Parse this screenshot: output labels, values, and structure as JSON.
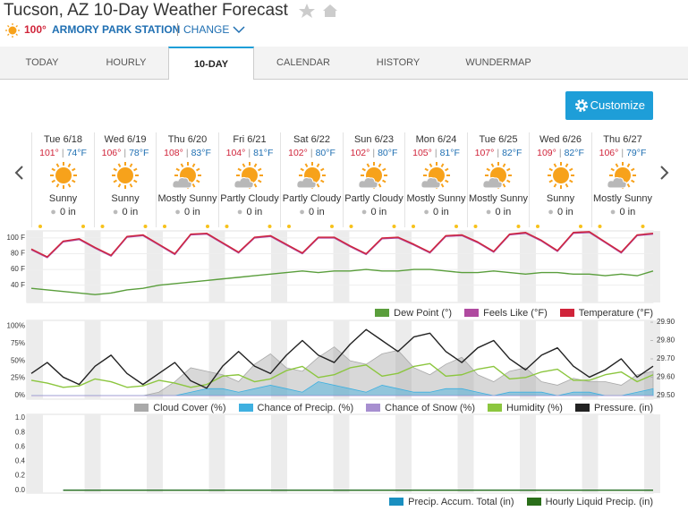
{
  "header": {
    "title": "Tucson, AZ 10-Day Weather Forecast",
    "current_temp": "100°",
    "station": "ARMORY PARK STATION",
    "change": "CHANGE"
  },
  "tabs": [
    "TODAY",
    "HOURLY",
    "10-DAY",
    "CALENDAR",
    "HISTORY",
    "WUNDERMAP"
  ],
  "active_tab": 2,
  "customize": "Customize",
  "days": [
    {
      "date": "Tue 6/18",
      "high": "101°",
      "low": "74°F",
      "condition": "Sunny",
      "precip": "0 in"
    },
    {
      "date": "Wed 6/19",
      "high": "106°",
      "low": "78°F",
      "condition": "Sunny",
      "precip": "0 in"
    },
    {
      "date": "Thu 6/20",
      "high": "108°",
      "low": "83°F",
      "condition": "Mostly Sunny",
      "precip": "0 in"
    },
    {
      "date": "Fri 6/21",
      "high": "104°",
      "low": "81°F",
      "condition": "Partly Cloudy",
      "precip": "0 in"
    },
    {
      "date": "Sat 6/22",
      "high": "102°",
      "low": "80°F",
      "condition": "Partly Cloudy",
      "precip": "0 in"
    },
    {
      "date": "Sun 6/23",
      "high": "102°",
      "low": "80°F",
      "condition": "Partly Cloudy",
      "precip": "0 in"
    },
    {
      "date": "Mon 6/24",
      "high": "105°",
      "low": "81°F",
      "condition": "Mostly Sunny",
      "precip": "0 in"
    },
    {
      "date": "Tue 6/25",
      "high": "107°",
      "low": "82°F",
      "condition": "Mostly Sunny",
      "precip": "0 in"
    },
    {
      "date": "Wed 6/26",
      "high": "109°",
      "low": "82°F",
      "condition": "Sunny",
      "precip": "0 in"
    },
    {
      "date": "Thu 6/27",
      "high": "106°",
      "low": "79°F",
      "condition": "Mostly Sunny",
      "precip": "0 in"
    }
  ],
  "charts": [
    {
      "type": "line",
      "ylim": [
        18,
        109
      ],
      "yticks": [
        {
          "value": 100,
          "label": "100 F"
        },
        {
          "value": 80,
          "label": "80 F"
        },
        {
          "value": 60,
          "label": "60 F"
        },
        {
          "value": 40,
          "label": "40 F"
        }
      ],
      "grid": true,
      "series": [
        {
          "name": "Dew Point (°)",
          "color": "#5a9e3c",
          "style": "line",
          "values": [
            36,
            34,
            32,
            30,
            28,
            30,
            34,
            36,
            40,
            42,
            44,
            46,
            48,
            50,
            52,
            54,
            56,
            58,
            56,
            58,
            58,
            60,
            58,
            58,
            60,
            60,
            58,
            56,
            56,
            58,
            56,
            54,
            56,
            56,
            54,
            54,
            52,
            54,
            52,
            58
          ]
        },
        {
          "name": "Feels Like (°F)",
          "color": "#b04aa0",
          "style": "line",
          "values": [
            85,
            75,
            95,
            98,
            87,
            77,
            101,
            103,
            91,
            79,
            104,
            105,
            93,
            81,
            100,
            102,
            91,
            80,
            100,
            100,
            89,
            79,
            99,
            100,
            91,
            81,
            102,
            103,
            94,
            82,
            104,
            106,
            96,
            83,
            106,
            107,
            94,
            81,
            103,
            105
          ]
        },
        {
          "name": "Temperature (°F)",
          "color": "#d0243a",
          "style": "line",
          "values": [
            86,
            76,
            96,
            99,
            88,
            78,
            102,
            104,
            92,
            80,
            105,
            106,
            94,
            82,
            101,
            103,
            92,
            81,
            101,
            101,
            90,
            80,
            100,
            101,
            92,
            82,
            103,
            104,
            95,
            83,
            105,
            107,
            97,
            84,
            107,
            108,
            95,
            82,
            104,
            106
          ]
        }
      ]
    },
    {
      "type": "line",
      "ylim": [
        -5,
        108
      ],
      "yticks": [
        {
          "value": 100,
          "label": "100%"
        },
        {
          "value": 75,
          "label": "75%"
        },
        {
          "value": 50,
          "label": "50%"
        },
        {
          "value": 25,
          "label": "25%"
        },
        {
          "value": 0,
          "label": "0%"
        }
      ],
      "y2lim": [
        29.48,
        29.91
      ],
      "y2ticks": [
        {
          "value": 29.9,
          "label": "29.90"
        },
        {
          "value": 29.8,
          "label": "29.80"
        },
        {
          "value": 29.7,
          "label": "29.70"
        },
        {
          "value": 29.6,
          "label": "29.60"
        },
        {
          "value": 29.5,
          "label": "29.50"
        }
      ],
      "series": [
        {
          "name": "Cloud Cover (%)",
          "color": "#a9a9a9",
          "style": "area",
          "values": [
            0,
            0,
            0,
            0,
            0,
            0,
            0,
            0,
            5,
            20,
            40,
            35,
            30,
            20,
            45,
            60,
            40,
            35,
            55,
            70,
            50,
            45,
            60,
            65,
            40,
            30,
            45,
            55,
            30,
            20,
            35,
            40,
            20,
            15,
            25,
            20,
            20,
            15,
            30,
            35
          ]
        },
        {
          "name": "Chance of Precip. (%)",
          "color": "#3fb0e0",
          "style": "area",
          "values": [
            0,
            0,
            0,
            0,
            0,
            0,
            0,
            0,
            0,
            0,
            5,
            10,
            10,
            5,
            10,
            15,
            10,
            5,
            20,
            15,
            10,
            5,
            15,
            10,
            5,
            5,
            10,
            10,
            5,
            0,
            5,
            5,
            5,
            0,
            5,
            5,
            0,
            0,
            5,
            10
          ]
        },
        {
          "name": "Chance of Snow (%)",
          "color": "#a78fd0",
          "style": "area",
          "values": [
            0,
            0,
            0,
            0,
            0,
            0,
            0,
            0,
            0,
            0,
            0,
            0,
            0,
            0,
            0,
            0,
            0,
            0,
            0,
            0,
            0,
            0,
            0,
            0,
            0,
            0,
            0,
            0,
            0,
            0,
            0,
            0,
            0,
            0,
            0,
            0,
            0,
            0,
            0,
            0
          ]
        },
        {
          "name": "Humidity (%)",
          "color": "#8cc63f",
          "style": "line",
          "values": [
            22,
            18,
            12,
            14,
            24,
            20,
            12,
            14,
            22,
            18,
            12,
            16,
            28,
            30,
            20,
            24,
            36,
            42,
            26,
            30,
            40,
            44,
            28,
            32,
            42,
            46,
            28,
            30,
            38,
            42,
            24,
            26,
            34,
            38,
            22,
            22,
            30,
            34,
            20,
            30
          ]
        },
        {
          "name": "Pressure. (in)",
          "color": "#222222",
          "style": "line",
          "axis": "y2",
          "values": [
            29.62,
            29.68,
            29.6,
            29.56,
            29.66,
            29.72,
            29.62,
            29.56,
            29.62,
            29.68,
            29.58,
            29.54,
            29.66,
            29.74,
            29.66,
            29.62,
            29.72,
            29.8,
            29.72,
            29.68,
            29.78,
            29.86,
            29.8,
            29.74,
            29.82,
            29.84,
            29.74,
            29.68,
            29.76,
            29.8,
            29.7,
            29.64,
            29.72,
            29.76,
            29.66,
            29.6,
            29.64,
            29.7,
            29.6,
            29.66
          ]
        }
      ]
    },
    {
      "type": "line",
      "ylim": [
        -0.04,
        1.05
      ],
      "yticks": [
        {
          "value": 1,
          "label": "1.0"
        },
        {
          "value": 0.8,
          "label": "0.8"
        },
        {
          "value": 0.6,
          "label": "0.6"
        },
        {
          "value": 0.4,
          "label": "0.4"
        },
        {
          "value": 0.2,
          "label": "0.2"
        },
        {
          "value": 0,
          "label": "0.0"
        }
      ],
      "series": [
        {
          "name": "Precip. Accum. Total (in)",
          "color": "#1a8fc0",
          "style": "line",
          "values": [
            null,
            null,
            0,
            0,
            0,
            0,
            0,
            0,
            0,
            0,
            0,
            0,
            0,
            0,
            0,
            0,
            0,
            0,
            0,
            0,
            0,
            0,
            0,
            0,
            0,
            0,
            0,
            0,
            0,
            0,
            0,
            0,
            0,
            0,
            0,
            0,
            0,
            0,
            0,
            0
          ]
        },
        {
          "name": "Hourly Liquid Precip. (in)",
          "color": "#2a6e1a",
          "style": "line",
          "values": [
            null,
            null,
            0,
            0,
            0,
            0,
            0,
            0,
            0,
            0,
            0,
            0,
            0,
            0,
            0,
            0,
            0,
            0,
            0,
            0,
            0,
            0,
            0,
            0,
            0,
            0,
            0,
            0,
            0,
            0,
            0,
            0,
            0,
            0,
            0,
            0,
            0,
            0,
            0,
            0
          ]
        }
      ]
    }
  ]
}
